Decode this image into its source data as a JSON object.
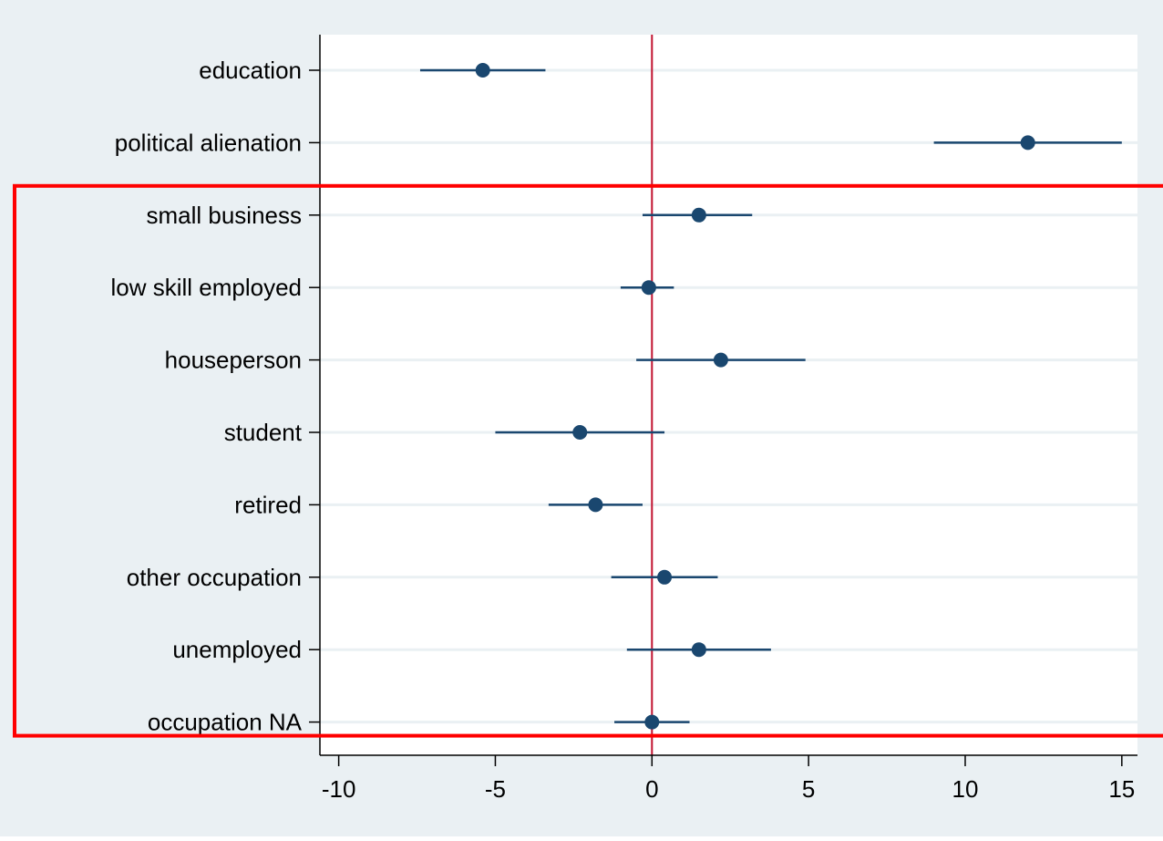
{
  "chart_data": {
    "type": "coefficient-plot",
    "title": "",
    "xlabel": "",
    "ylabel": "",
    "xlim": [
      -10.6,
      15.5
    ],
    "xticks": [
      -10,
      -5,
      0,
      5,
      10,
      15
    ],
    "xtick_labels": [
      "-10",
      "-5",
      "0",
      "5",
      "10",
      "15"
    ],
    "reference_line_x": 0,
    "grid": "horizontal",
    "legend": "none",
    "categories": [
      "education",
      "political alienation",
      "small business",
      "low skill employed",
      "houseperson",
      "student",
      "retired",
      "other occupation",
      "unemployed",
      "occupation NA"
    ],
    "series": [
      {
        "estimate": [
          -5.4,
          12.0,
          1.5,
          -0.1,
          2.2,
          -2.3,
          -1.8,
          0.4,
          1.5,
          0.0
        ],
        "ci_low": [
          -7.4,
          9.0,
          -0.3,
          -1.0,
          -0.5,
          -5.0,
          -3.3,
          -1.3,
          -0.8,
          -1.2
        ],
        "ci_high": [
          -3.4,
          15.0,
          3.2,
          0.7,
          4.9,
          0.4,
          -0.3,
          2.1,
          3.8,
          1.2
        ]
      }
    ],
    "highlight_box": {
      "covers": [
        "small business",
        "low skill employed",
        "houseperson",
        "student",
        "retired",
        "other occupation",
        "unemployed",
        "occupation NA"
      ]
    },
    "colors": {
      "outer_background": "#eaf0f3",
      "plot_background": "#ffffff",
      "gridline": "#eaf0f3",
      "marker": "#1a476f",
      "reference_line": "#c1122f",
      "highlight_box": "#ff0000",
      "axis": "#000000"
    }
  }
}
